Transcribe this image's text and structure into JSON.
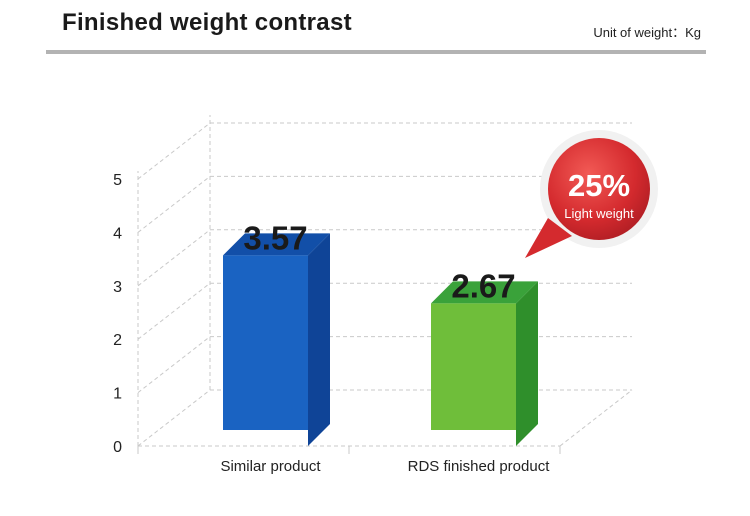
{
  "header": {
    "title": "Finished weight contrast",
    "unit": "Unit of weight：Kg"
  },
  "callout": {
    "percent": "25%",
    "label": "Light weight"
  },
  "chart_data": {
    "type": "bar",
    "categories": [
      "Similar product",
      "RDS finished product"
    ],
    "values": [
      3.57,
      2.67
    ],
    "value_labels": [
      "3.57",
      "2.67"
    ],
    "ylim": [
      0,
      5
    ],
    "yticks": [
      0,
      1,
      2,
      3,
      4,
      5
    ],
    "grid": true,
    "colors": {
      "bar_front": [
        "#1a63c2",
        "#6fbe3a"
      ],
      "bar_side": [
        "#0f4497",
        "#2f8f2b"
      ],
      "bar_top": [
        "#124fa8",
        "#3aa23a"
      ],
      "callout": "#d42a2e"
    }
  }
}
